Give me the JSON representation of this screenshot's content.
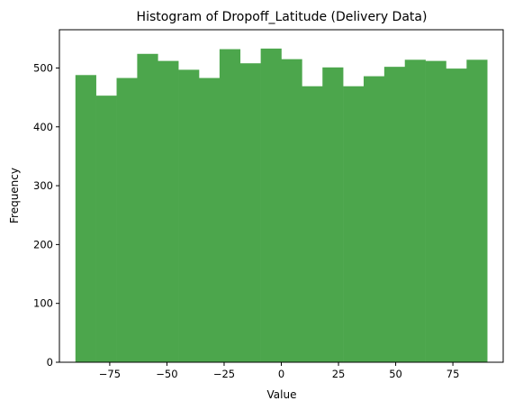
{
  "chart_data": {
    "type": "bar",
    "title": "Histogram of Dropoff_Latitude (Delivery Data)",
    "xlabel": "Value",
    "ylabel": "Frequency",
    "bar_color": "#4ca64c",
    "xlim": [
      -97,
      97
    ],
    "ylim": [
      0,
      565
    ],
    "xticks": [
      -75,
      -50,
      -25,
      0,
      25,
      50,
      75
    ],
    "xtick_labels": [
      "−75",
      "−50",
      "−25",
      "0",
      "25",
      "50",
      "75"
    ],
    "yticks": [
      0,
      100,
      200,
      300,
      400,
      500
    ],
    "ytick_labels": [
      "0",
      "100",
      "200",
      "300",
      "400",
      "500"
    ],
    "bin_edges": [
      -90,
      -81,
      -72,
      -63,
      -54,
      -45,
      -36,
      -27,
      -18,
      -9,
      0,
      9,
      18,
      27,
      36,
      45,
      54,
      63,
      72,
      81,
      90
    ],
    "values": [
      488,
      453,
      483,
      524,
      512,
      497,
      483,
      532,
      508,
      533,
      515,
      469,
      501,
      469,
      486,
      502,
      514,
      512,
      499,
      514
    ],
    "grid": false,
    "legend": "none"
  }
}
